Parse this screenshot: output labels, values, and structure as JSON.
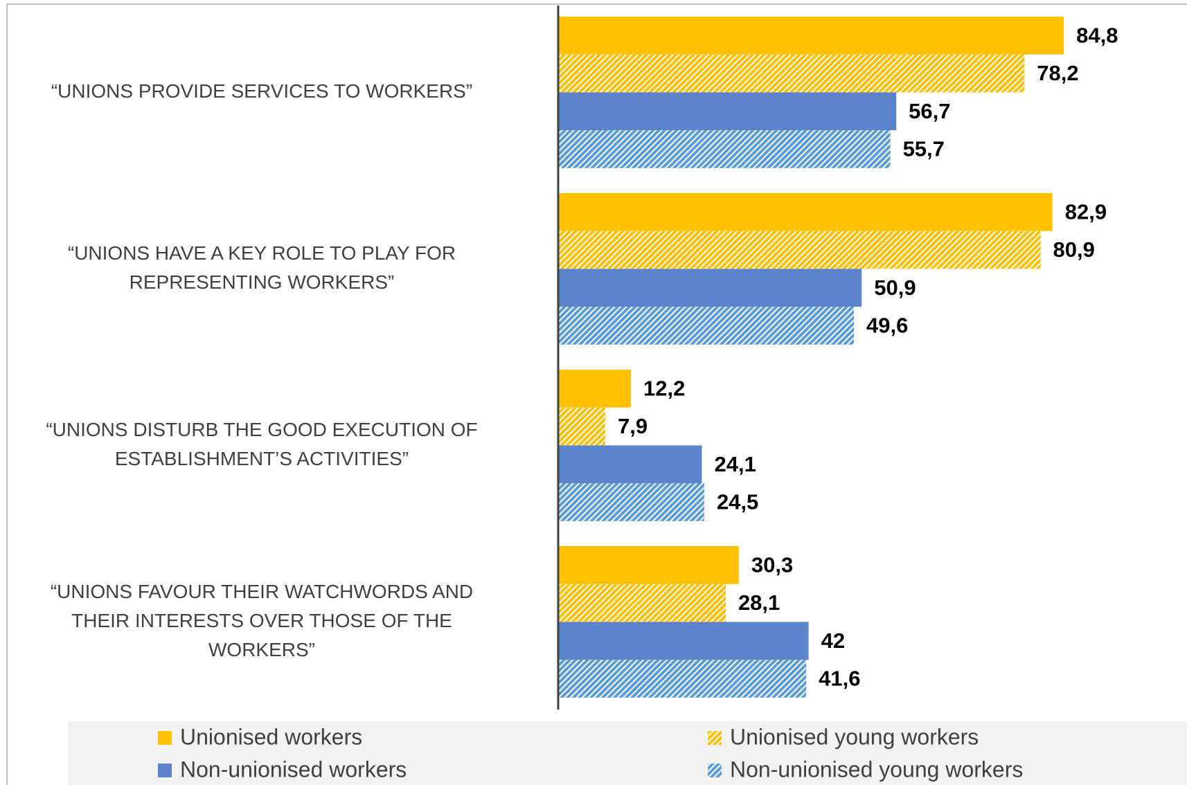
{
  "chart_data": {
    "type": "bar",
    "orientation": "horizontal",
    "categories": [
      [
        "“UNIONS PROVIDE SERVICES TO WORKERS”"
      ],
      [
        "“UNIONS HAVE A KEY ROLE TO PLAY FOR",
        "REPRESENTING WORKERS”"
      ],
      [
        "“UNIONS DISTURB THE GOOD EXECUTION OF",
        "ESTABLISHMENT’S ACTIVITIES”"
      ],
      [
        "“UNIONS FAVOUR THEIR WATCHWORDS AND",
        "THEIR INTERESTS OVER THOSE OF THE",
        "WORKERS”"
      ]
    ],
    "series": [
      {
        "name": "Unionised workers",
        "color": "#FFC000",
        "hatch": false,
        "values": [
          84.8,
          82.9,
          12.2,
          30.3
        ],
        "value_labels": [
          "84,8",
          "82,9",
          "12,2",
          "30,3"
        ]
      },
      {
        "name": "Unionised young workers",
        "color": "#FFC000",
        "hatch": true,
        "values": [
          78.2,
          80.9,
          7.9,
          28.1
        ],
        "value_labels": [
          "78,2",
          "80,9",
          "7,9",
          "28,1"
        ]
      },
      {
        "name": "Non-unionised workers",
        "color": "#5B84CC",
        "hatch": false,
        "values": [
          56.7,
          50.9,
          24.1,
          42
        ],
        "value_labels": [
          "56,7",
          "50,9",
          "24,1",
          "42"
        ]
      },
      {
        "name": "Non-unionised young workers",
        "color": "#5B9BD5",
        "hatch": true,
        "values": [
          55.7,
          49.6,
          24.5,
          41.6
        ],
        "value_labels": [
          "55,7",
          "49,6",
          "24,5",
          "41,6"
        ]
      }
    ],
    "legend": "bottom"
  }
}
